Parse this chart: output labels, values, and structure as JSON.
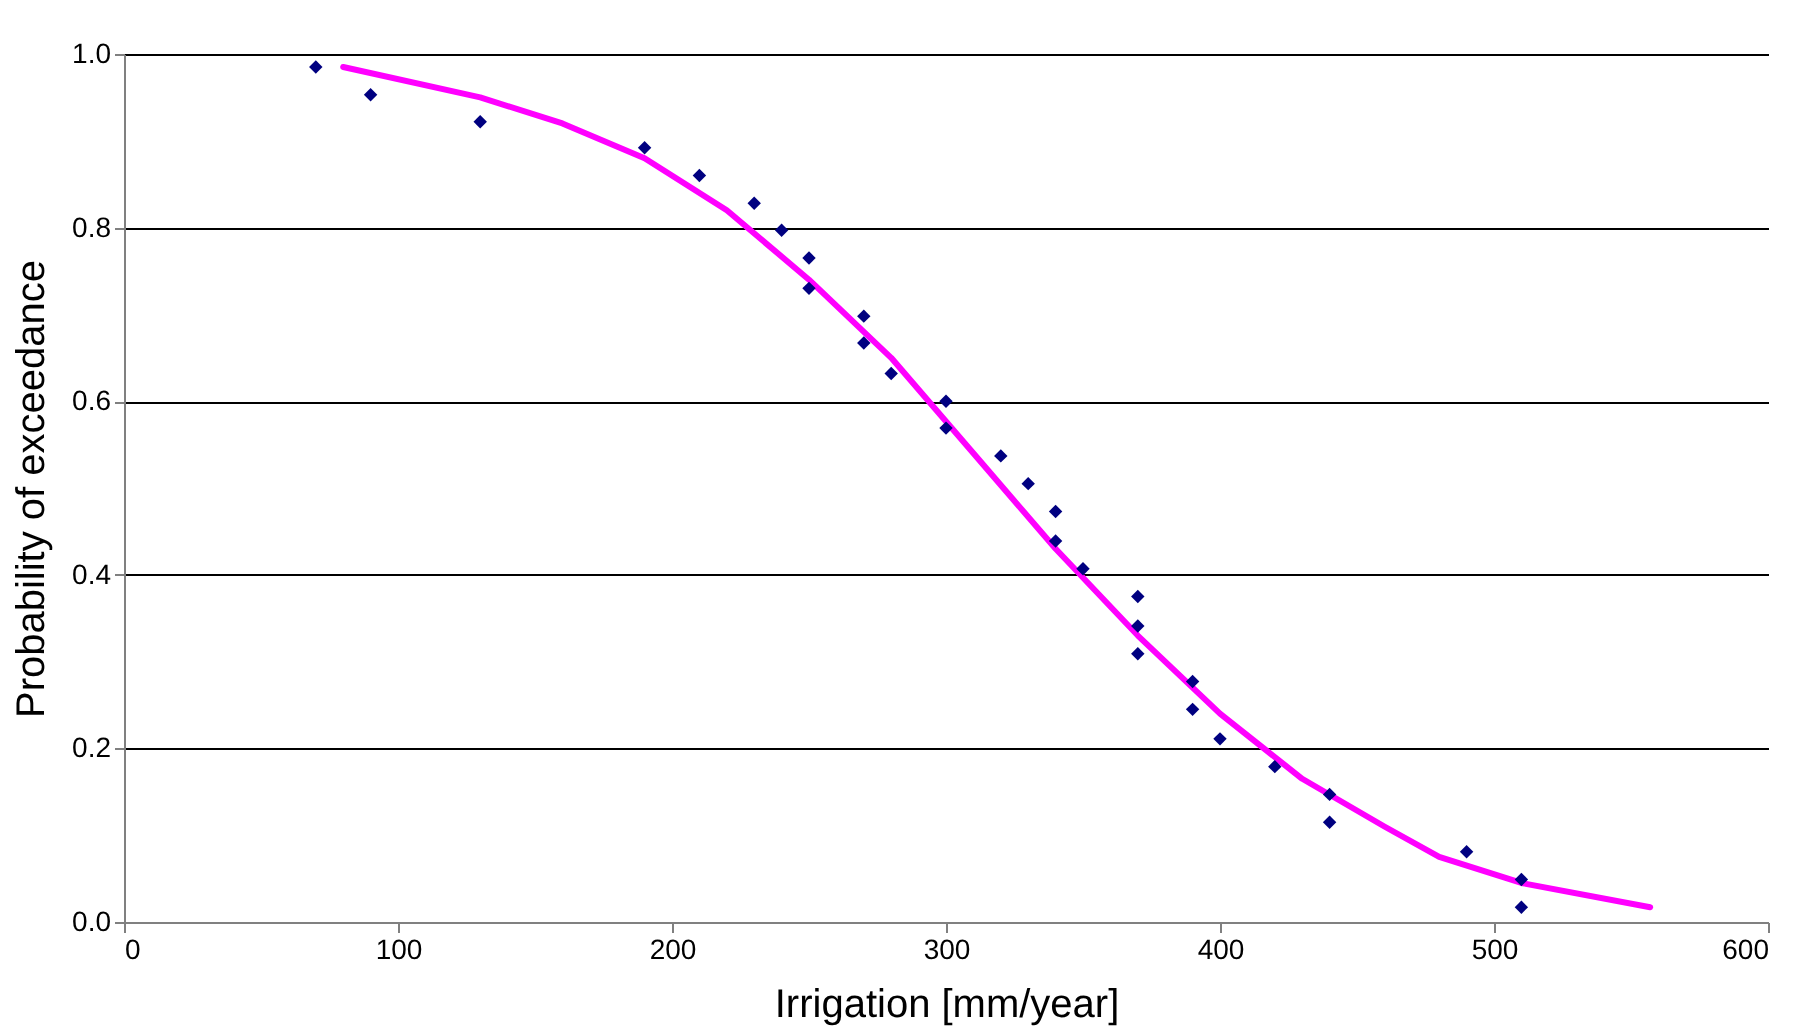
{
  "chart_data": {
    "type": "scatter",
    "xlabel": "Irrigation [mm/year]",
    "ylabel": "Probability of exceedance",
    "xlim": [
      0,
      600
    ],
    "xticks": [
      0,
      100,
      200,
      300,
      400,
      500,
      600
    ],
    "ylim": [
      0,
      1
    ],
    "yticks": [
      {
        "value": 0,
        "label": "0.0"
      },
      {
        "value": 0.2,
        "label": "0.2"
      },
      {
        "value": 0.4,
        "label": "0.4"
      },
      {
        "value": 0.6,
        "label": "0.6"
      },
      {
        "value": 0.8,
        "label": "0.8"
      },
      {
        "value": 1,
        "label": "1.0"
      }
    ],
    "grid": "y",
    "series": [
      {
        "marker": "diamond",
        "color": "#000080",
        "x": [
          70,
          90,
          130,
          190,
          210,
          230,
          240,
          250,
          250,
          270,
          270,
          280,
          300,
          300,
          320,
          330,
          340,
          340,
          350,
          370,
          370,
          370,
          390,
          390,
          400,
          420,
          440,
          440,
          490,
          510,
          510
        ],
        "values": [
          0.985,
          0.953,
          0.922,
          0.892,
          0.86,
          0.828,
          0.797,
          0.765,
          0.73,
          0.698,
          0.667,
          0.632,
          0.6,
          0.569,
          0.537,
          0.505,
          0.473,
          0.439,
          0.407,
          0.375,
          0.341,
          0.309,
          0.277,
          0.245,
          0.211,
          0.179,
          0.147,
          0.115,
          0.081,
          0.049,
          0.017
        ]
      },
      {
        "type": "line",
        "marker": "none",
        "line_style": "solid",
        "color": "#ff00ff",
        "x": [
          80,
          130,
          160,
          190,
          220,
          250,
          280,
          310,
          340,
          370,
          400,
          430,
          460,
          480,
          510,
          557
        ],
        "values": [
          0.985,
          0.95,
          0.92,
          0.88,
          0.82,
          0.74,
          0.65,
          0.54,
          0.43,
          0.33,
          0.24,
          0.165,
          0.11,
          0.075,
          0.045,
          0.017
        ]
      }
    ]
  }
}
